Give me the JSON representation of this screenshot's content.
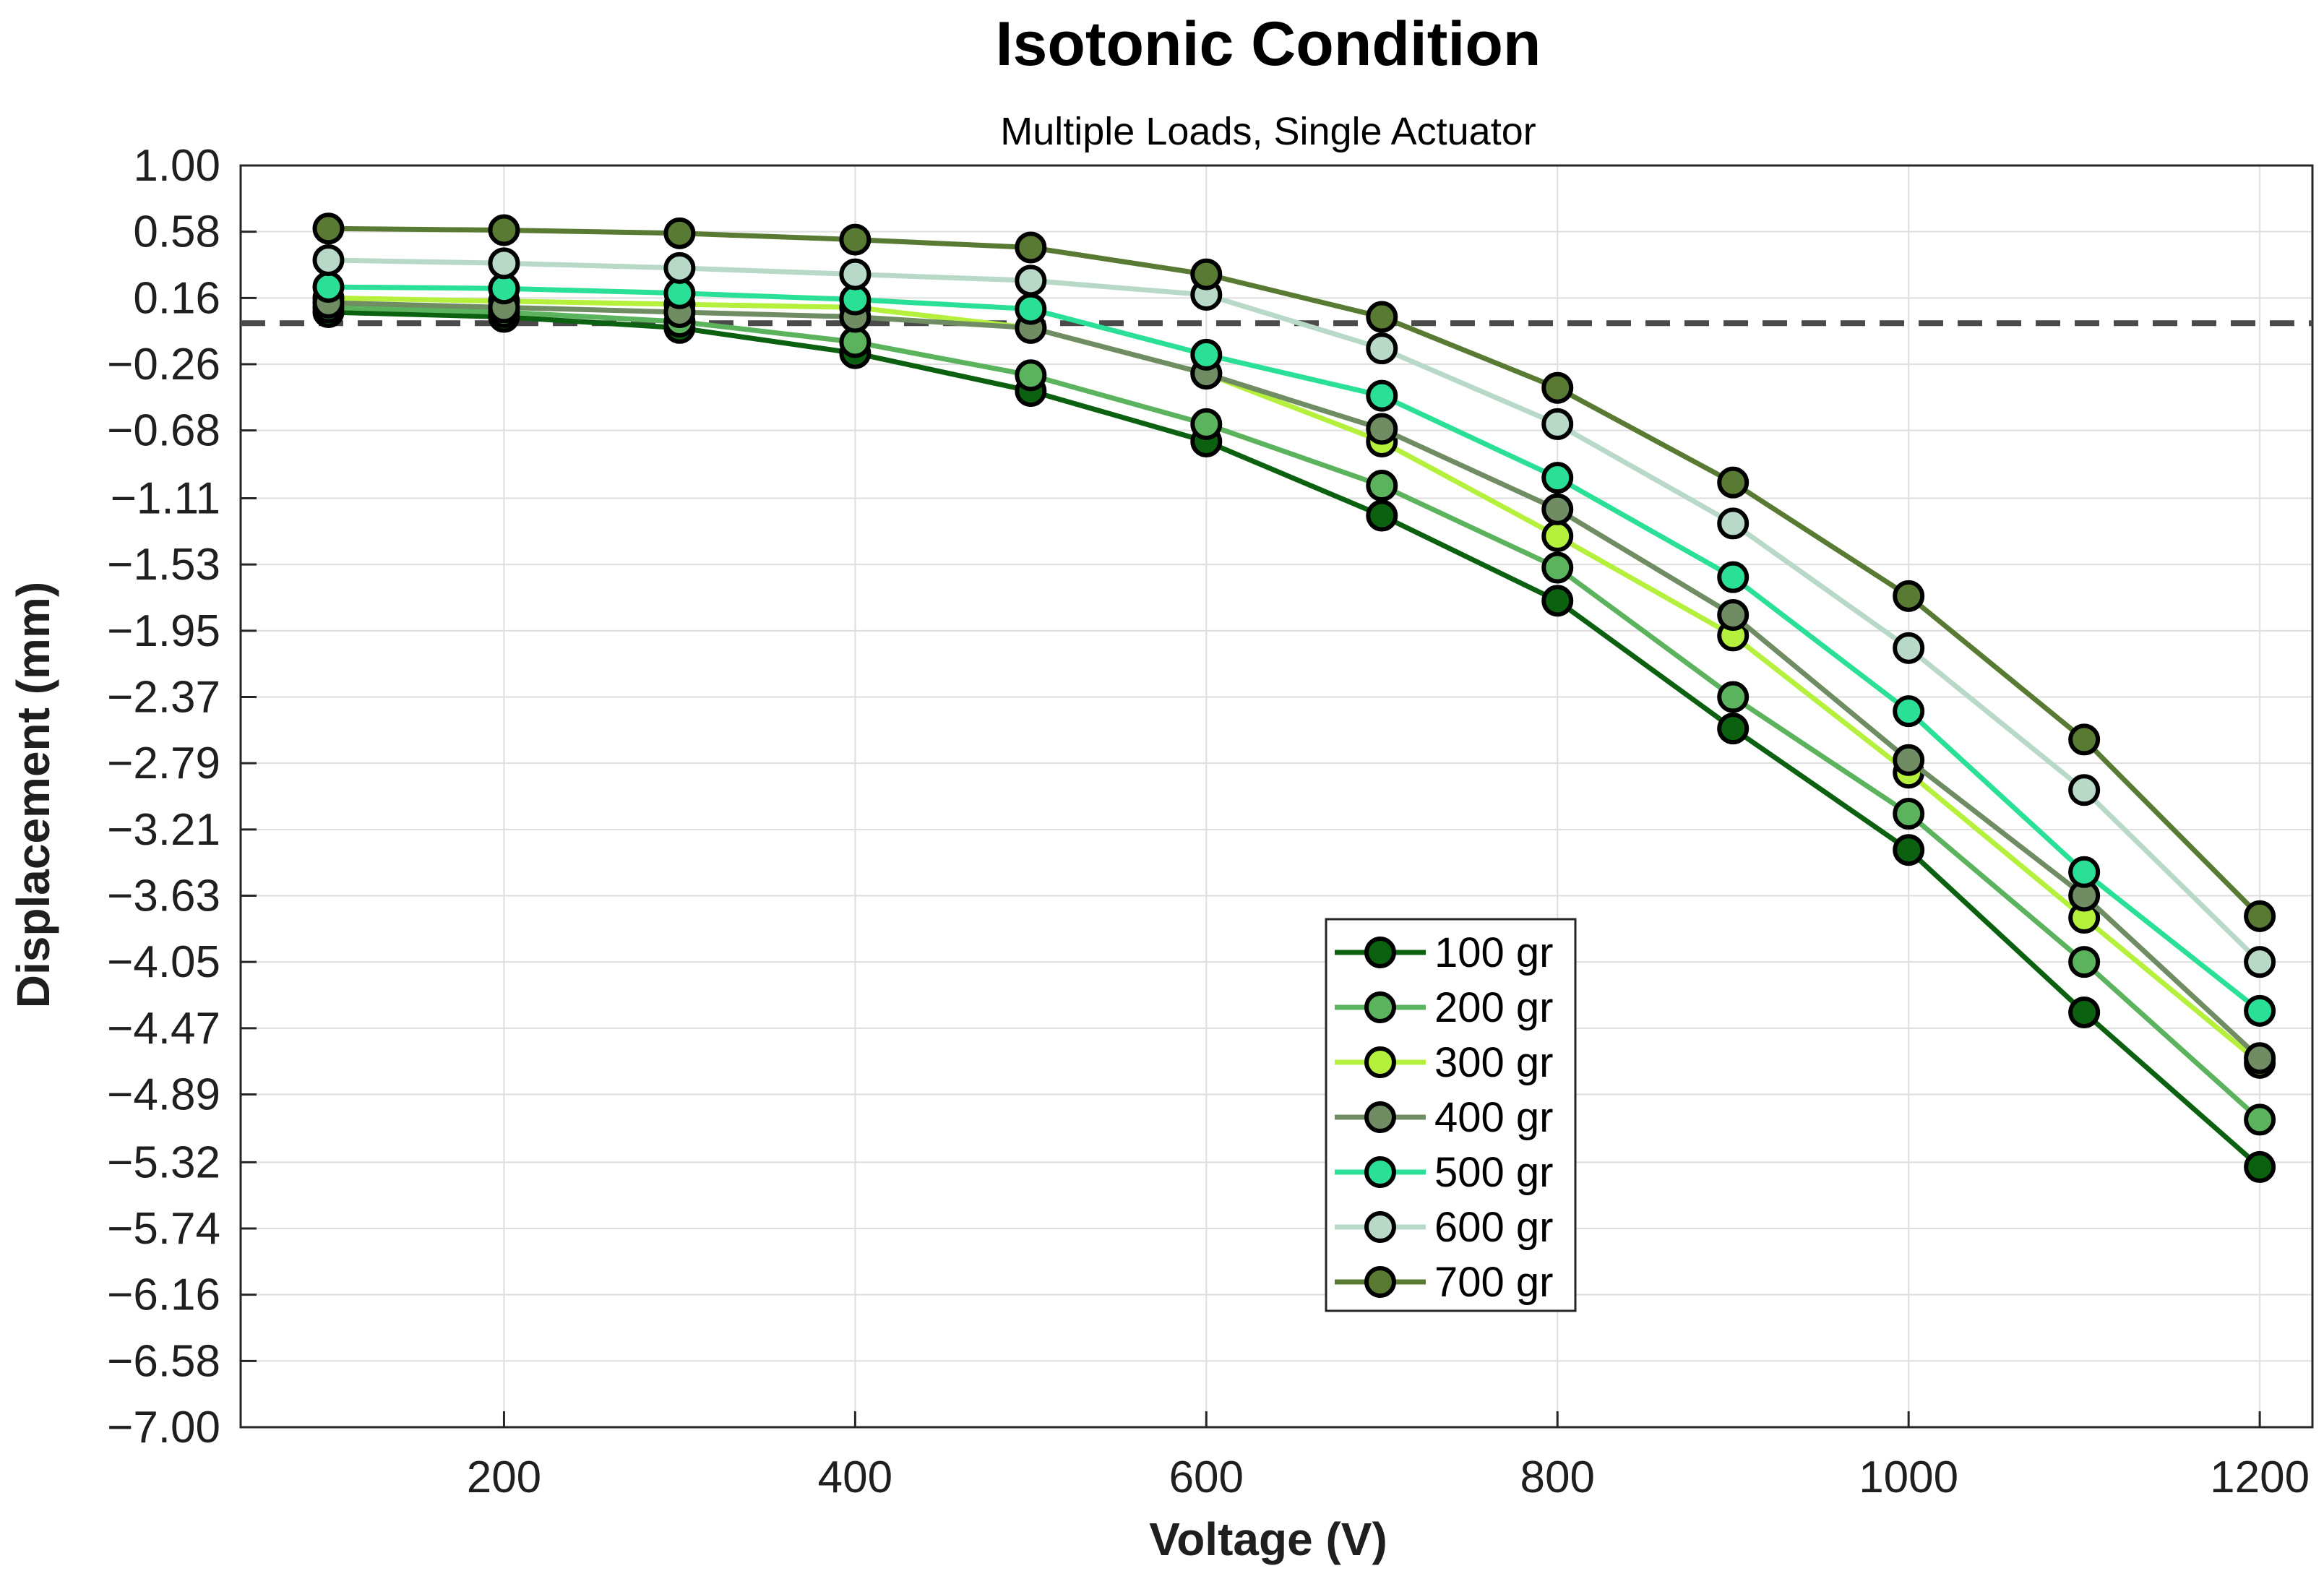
{
  "chart_data": {
    "type": "line",
    "title": "Isotonic Condition",
    "subtitle": "Multiple Loads, Single Actuator",
    "xlabel": "Voltage (V)",
    "ylabel": "Displacement (mm)",
    "xlim": [
      50,
      1230
    ],
    "ylim": [
      -7.0,
      1.0
    ],
    "x": [
      100,
      200,
      300,
      400,
      500,
      600,
      700,
      800,
      900,
      1000,
      1100,
      1200
    ],
    "x_ticks": [
      200,
      400,
      600,
      800,
      1000,
      1200
    ],
    "x_tick_labels": [
      "200",
      "400",
      "600",
      "800",
      "1000",
      "1200"
    ],
    "y_ticks": [
      1.0,
      0.58,
      0.16,
      -0.26,
      -0.68,
      -1.11,
      -1.53,
      -1.95,
      -2.37,
      -2.79,
      -3.21,
      -3.63,
      -4.05,
      -4.47,
      -4.89,
      -5.32,
      -5.74,
      -6.16,
      -6.58,
      -7.0
    ],
    "y_tick_labels": [
      "1.00",
      "0.58",
      "0.16",
      "−0.26",
      "−0.68",
      "−1.11",
      "−1.53",
      "−1.95",
      "−2.37",
      "−2.79",
      "−3.21",
      "−3.63",
      "−4.05",
      "−4.47",
      "−4.89",
      "−5.32",
      "−5.74",
      "−6.16",
      "−6.58",
      "−7.00"
    ],
    "grid": true,
    "reference_line": {
      "y": 0.0,
      "style": "dashed",
      "color": "#4a4a4a"
    },
    "legend_position": "lower-center",
    "series": [
      {
        "name": "100 gr",
        "color": "#0b6110",
        "values": [
          0.07,
          0.04,
          -0.03,
          -0.19,
          -0.43,
          -0.75,
          -1.22,
          -1.76,
          -2.57,
          -3.34,
          -4.37,
          -5.35
        ]
      },
      {
        "name": "200 gr",
        "color": "#5cb35e",
        "values": [
          0.1,
          0.07,
          0.01,
          -0.12,
          -0.33,
          -0.64,
          -1.03,
          -1.55,
          -2.37,
          -3.11,
          -4.05,
          -5.05
        ]
      },
      {
        "name": "300 gr",
        "color": "#b4f03c",
        "values": [
          0.16,
          0.14,
          0.12,
          0.1,
          -0.03,
          -0.32,
          -0.75,
          -1.35,
          -1.98,
          -2.85,
          -3.77,
          -4.69
        ]
      },
      {
        "name": "400 gr",
        "color": "#6f8c62",
        "values": [
          0.13,
          0.1,
          0.07,
          0.04,
          -0.03,
          -0.32,
          -0.67,
          -1.18,
          -1.85,
          -2.77,
          -3.63,
          -4.66
        ]
      },
      {
        "name": "500 gr",
        "color": "#2ae096",
        "values": [
          0.23,
          0.22,
          0.19,
          0.15,
          0.09,
          -0.2,
          -0.46,
          -0.98,
          -1.61,
          -2.46,
          -3.48,
          -4.36
        ]
      },
      {
        "name": "600 gr",
        "color": "#b8d8c8",
        "values": [
          0.4,
          0.38,
          0.35,
          0.31,
          0.27,
          0.18,
          -0.16,
          -0.64,
          -1.27,
          -2.06,
          -2.96,
          -4.05
        ]
      },
      {
        "name": "700 gr",
        "color": "#587a33",
        "values": [
          0.6,
          0.59,
          0.57,
          0.53,
          0.48,
          0.31,
          0.04,
          -0.41,
          -1.01,
          -1.73,
          -2.64,
          -3.76
        ]
      }
    ]
  }
}
